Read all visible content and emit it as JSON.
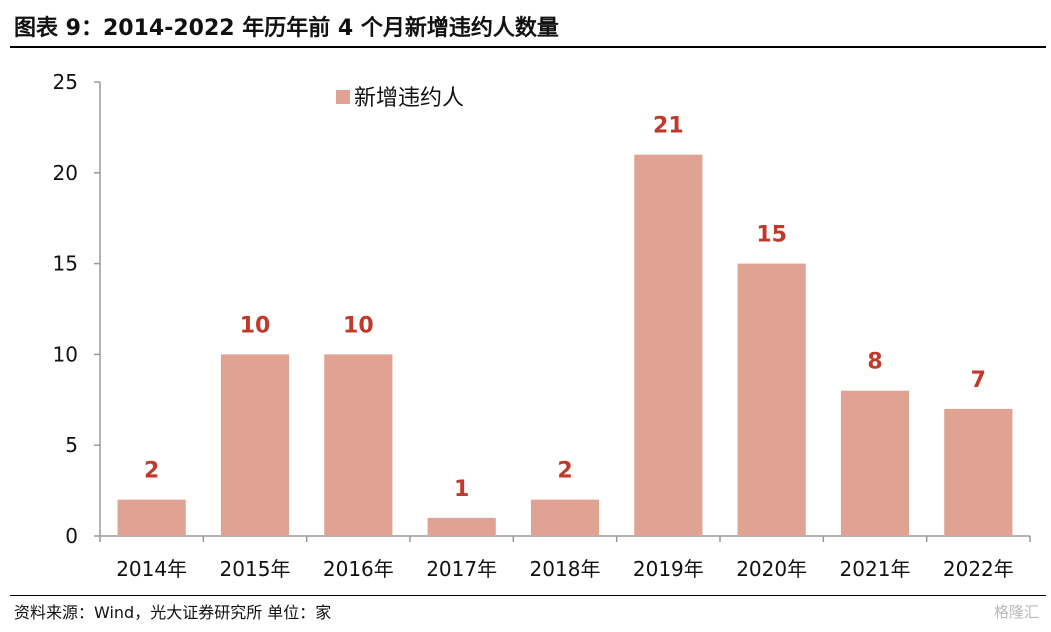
{
  "title": "图表 9：2014-2022 年历年前 4 个月新增违约人数量",
  "footer": {
    "source": "资料来源：Wind，光大证券研究所    单位：家",
    "watermark": "格隆汇"
  },
  "colors": {
    "bar": "#e0a293",
    "data_label": "#c0392b",
    "axis": "#999999",
    "text": "#111111"
  },
  "chart_data": {
    "type": "bar",
    "title": "",
    "xlabel": "",
    "ylabel": "",
    "categories": [
      "2014年",
      "2015年",
      "2016年",
      "2017年",
      "2018年",
      "2019年",
      "2020年",
      "2021年",
      "2022年"
    ],
    "series": [
      {
        "name": "新增违约人",
        "values": [
          2,
          10,
          10,
          1,
          2,
          21,
          15,
          8,
          7
        ]
      }
    ],
    "ylim": [
      0,
      25
    ],
    "yticks": [
      0,
      5,
      10,
      15,
      20,
      25
    ],
    "grid": false,
    "legend": "top-center"
  }
}
